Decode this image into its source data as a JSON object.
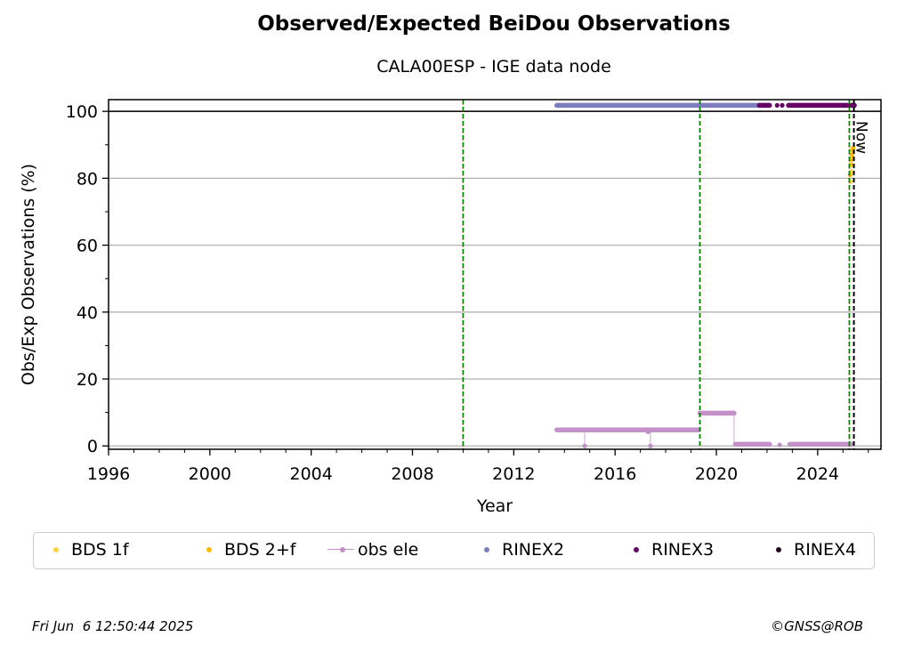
{
  "chart_data": {
    "type": "scatter",
    "title": "Observed/Expected BeiDou Observations",
    "subtitle": "CALA00ESP - IGE data node",
    "xlabel": "Year",
    "ylabel": "Obs/Exp Observations (%)",
    "xlim": [
      1996.0,
      2026.5
    ],
    "ylim": [
      -1,
      103.5
    ],
    "x_ticks": [
      1996,
      2000,
      2004,
      2008,
      2012,
      2016,
      2020,
      2024
    ],
    "y_ticks": [
      0,
      20,
      40,
      60,
      80,
      100
    ],
    "grid": "horizontal",
    "hline": 100,
    "vlines": [
      {
        "x": 2010.0,
        "style": "red-green-dashed"
      },
      {
        "x": 2019.35,
        "style": "green-dashed"
      },
      {
        "x": 2025.25,
        "style": "red-green-dashed"
      },
      {
        "x": 2025.43,
        "style": "black-dashed",
        "label": "Now"
      }
    ],
    "series": [
      {
        "name": "BDS 1f",
        "color": "#ffd040",
        "points": [
          [
            2025.3,
            79
          ],
          [
            2025.32,
            82
          ],
          [
            2025.34,
            84
          ],
          [
            2025.36,
            86
          ],
          [
            2025.38,
            88
          ]
        ]
      },
      {
        "name": "BDS 2+f",
        "color": "#ffbb00",
        "points": [
          [
            2025.28,
            81
          ],
          [
            2025.31,
            84
          ],
          [
            2025.33,
            85.5
          ],
          [
            2025.35,
            87
          ],
          [
            2025.37,
            88.5
          ],
          [
            2025.4,
            89
          ]
        ]
      },
      {
        "name": "obs ele",
        "color": "#c390c9",
        "segments": [
          {
            "x0": 2013.7,
            "x1": 2019.3,
            "y": 4.8
          },
          {
            "x0": 2019.35,
            "x1": 2020.7,
            "y": 9.8
          },
          {
            "x0": 2020.75,
            "x1": 2022.1,
            "y": 0.5
          },
          {
            "x0": 2022.9,
            "x1": 2025.35,
            "y": 0.5
          }
        ],
        "points": [
          [
            2014.8,
            0
          ],
          [
            2017.3,
            4.2
          ],
          [
            2017.4,
            0
          ],
          [
            2022.5,
            0.3
          ]
        ]
      },
      {
        "name": "RINEX2",
        "color": "#7d7dbd",
        "segments": [
          {
            "x0": 2013.7,
            "x1": 2021.7,
            "y": 101.8
          }
        ]
      },
      {
        "name": "RINEX3",
        "color": "#660066",
        "segments": [
          {
            "x0": 2021.7,
            "x1": 2022.1,
            "y": 101.8
          },
          {
            "x0": 2022.85,
            "x1": 2025.45,
            "y": 101.8
          }
        ],
        "points": [
          [
            2022.4,
            101.8
          ],
          [
            2022.6,
            101.8
          ]
        ]
      },
      {
        "name": "RINEX4",
        "color": "#220022",
        "points": []
      }
    ]
  },
  "legend": [
    {
      "label": "BDS 1f",
      "color": "#ffd040",
      "kind": "dot"
    },
    {
      "label": "BDS 2+f",
      "color": "#ffbb00",
      "kind": "dot"
    },
    {
      "label": "obs ele",
      "color": "#c390c9",
      "kind": "line-dot"
    },
    {
      "label": "RINEX2",
      "color": "#7d7dbd",
      "kind": "dot"
    },
    {
      "label": "RINEX3",
      "color": "#660066",
      "kind": "dot"
    },
    {
      "label": "RINEX4",
      "color": "#220022",
      "kind": "dot"
    }
  ],
  "footer": {
    "timestamp": "Fri Jun  6 12:50:44 2025",
    "credit": "©GNSS@ROB"
  }
}
